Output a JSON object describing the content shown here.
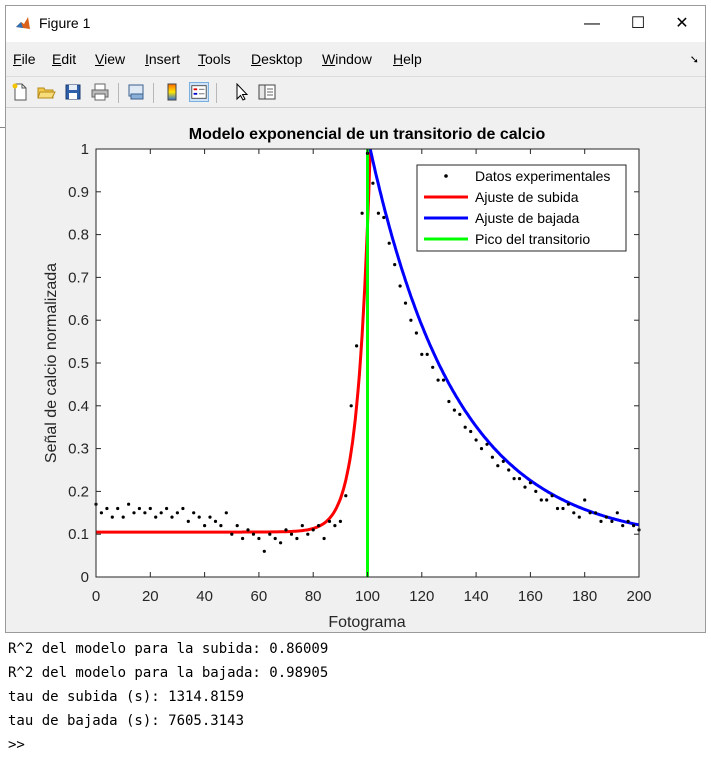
{
  "window": {
    "title": "Figure 1",
    "minimize_glyph": "—",
    "maximize_glyph": "☐",
    "close_glyph": "✕"
  },
  "menu": [
    {
      "label": "File",
      "u": "F",
      "rest": "ile"
    },
    {
      "label": "Edit",
      "u": "E",
      "rest": "dit"
    },
    {
      "label": "View",
      "u": "V",
      "rest": "iew"
    },
    {
      "label": "Insert",
      "u": "I",
      "rest": "nsert"
    },
    {
      "label": "Tools",
      "u": "T",
      "rest": "ools"
    },
    {
      "label": "Desktop",
      "u": "D",
      "rest": "esktop"
    },
    {
      "label": "Window",
      "u": "W",
      "rest": "indow"
    },
    {
      "label": "Help",
      "u": "H",
      "rest": "elp"
    }
  ],
  "toolbar_icons": [
    "new-figure-icon",
    "open-file-icon",
    "save-icon",
    "print-icon",
    "print-preview-icon",
    "colorbar-icon",
    "legend-icon",
    "pointer-icon",
    "property-inspector-icon"
  ],
  "chart_data": {
    "type": "line",
    "title": "Modelo exponencial de un transitorio de calcio",
    "xlabel": "Fotograma",
    "ylabel": "Señal de calcio normalizada",
    "xlim": [
      0,
      200
    ],
    "ylim": [
      0,
      1
    ],
    "xticks": [
      0,
      20,
      40,
      60,
      80,
      100,
      120,
      140,
      160,
      180,
      200
    ],
    "yticks": [
      0,
      0.1,
      0.2,
      0.3,
      0.4,
      0.5,
      0.6,
      0.7,
      0.8,
      0.9,
      1
    ],
    "ytick_labels": [
      "0",
      "0.1",
      "0.2",
      "0.3",
      "0.4",
      "0.5",
      "0.6",
      "0.7",
      "0.8",
      "0.9",
      "1"
    ],
    "grid": false,
    "legend_position": "top-right",
    "legend": [
      "Datos experimentales",
      "Ajuste de subida",
      "Ajuste de bajada",
      "Pico del transitorio"
    ],
    "colors": {
      "data": "#000000",
      "rise": "#ff0000",
      "decay": "#0000ff",
      "peak": "#00ff00"
    },
    "series": [
      {
        "name": "Datos experimentales",
        "kind": "scatter",
        "x": [
          0,
          2,
          4,
          6,
          8,
          10,
          12,
          14,
          16,
          18,
          20,
          22,
          24,
          26,
          28,
          30,
          32,
          34,
          36,
          38,
          40,
          42,
          44,
          46,
          48,
          50,
          52,
          54,
          56,
          58,
          60,
          62,
          64,
          66,
          68,
          70,
          72,
          74,
          76,
          78,
          80,
          82,
          84,
          86,
          88,
          90,
          92,
          94,
          96,
          98,
          100,
          102,
          104,
          106,
          108,
          110,
          112,
          114,
          116,
          118,
          120,
          122,
          124,
          126,
          128,
          130,
          132,
          134,
          136,
          138,
          140,
          142,
          144,
          146,
          148,
          150,
          152,
          154,
          156,
          158,
          160,
          162,
          164,
          166,
          168,
          170,
          172,
          174,
          176,
          178,
          180,
          182,
          184,
          186,
          188,
          190,
          192,
          194,
          196,
          198,
          200
        ],
        "y": [
          0.17,
          0.15,
          0.16,
          0.14,
          0.16,
          0.14,
          0.17,
          0.15,
          0.16,
          0.15,
          0.16,
          0.14,
          0.15,
          0.16,
          0.14,
          0.15,
          0.16,
          0.13,
          0.15,
          0.14,
          0.12,
          0.14,
          0.13,
          0.12,
          0.15,
          0.1,
          0.12,
          0.09,
          0.11,
          0.1,
          0.09,
          0.06,
          0.1,
          0.09,
          0.08,
          0.11,
          0.1,
          0.09,
          0.12,
          0.1,
          0.11,
          0.12,
          0.09,
          0.13,
          0.12,
          0.13,
          0.19,
          0.4,
          0.54,
          0.85,
          0.99,
          0.92,
          0.85,
          0.84,
          0.78,
          0.73,
          0.68,
          0.64,
          0.6,
          0.57,
          0.52,
          0.52,
          0.49,
          0.46,
          0.46,
          0.41,
          0.39,
          0.38,
          0.35,
          0.34,
          0.32,
          0.3,
          0.31,
          0.28,
          0.26,
          0.27,
          0.25,
          0.23,
          0.23,
          0.21,
          0.22,
          0.2,
          0.18,
          0.18,
          0.19,
          0.16,
          0.16,
          0.17,
          0.15,
          0.14,
          0.18,
          0.15,
          0.15,
          0.13,
          0.14,
          0.13,
          0.15,
          0.12,
          0.13,
          0.12,
          0.11
        ]
      },
      {
        "name": "Ajuste de subida",
        "kind": "line",
        "baseline": 0.105,
        "x_range": [
          0,
          101
        ],
        "tau_frames": 4.5,
        "peak": 1.0
      },
      {
        "name": "Ajuste de bajada",
        "kind": "line",
        "floor": 0.08,
        "x_range": [
          101,
          200
        ],
        "tau_frames": 32,
        "peak": 1.0
      },
      {
        "name": "Pico del transitorio",
        "kind": "vline",
        "x": 100
      }
    ]
  },
  "console": [
    "R^2 del modelo para la subida: 0.86009",
    "R^2 del modelo para la bajada: 0.98905",
    "tau de subida (s): 1314.8159",
    "tau de bajada (s): 7605.3143",
    ">>"
  ]
}
